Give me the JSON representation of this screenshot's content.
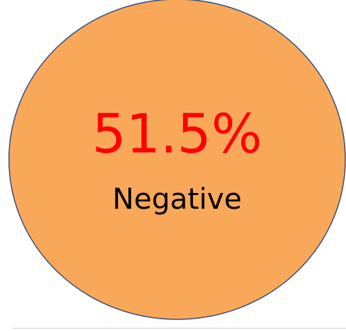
{
  "value_text": "51.5%",
  "label": "Negative"
}
